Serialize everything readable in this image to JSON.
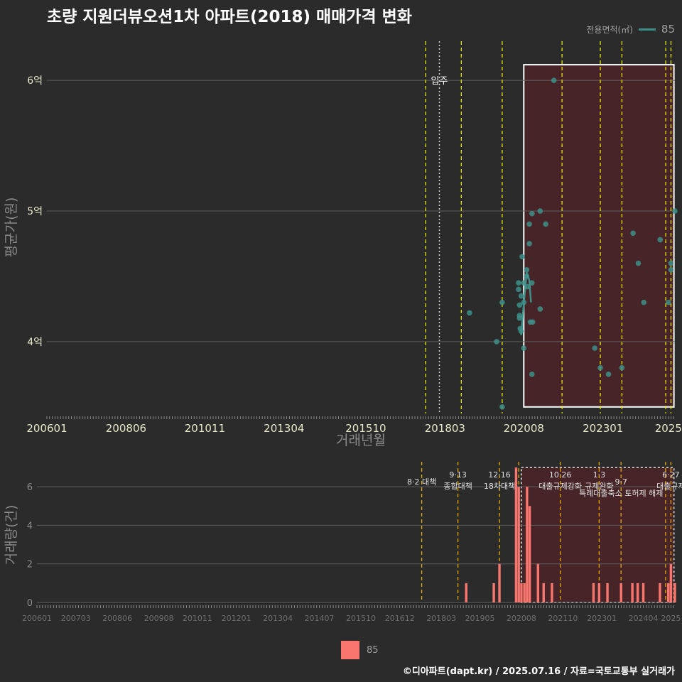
{
  "title": "초량 지원더뷰오션1차 아파트(2018) 매매가격 변화",
  "legend": {
    "label": "전용면적(㎡)",
    "series_name": "85"
  },
  "footer": "©디아파트(dapt.kr) / 2025.07.16 / 자료=국토교통부 실거래가",
  "colors": {
    "background": "#2b2b2b",
    "point": "#3d8f8a",
    "bar": "#f8766d",
    "highlight_fill": "#4a2327",
    "policy_line": "#e6e600",
    "policy_line_bottom": "#e6a800",
    "grid": "#5e5e5e"
  },
  "chart_data": [
    {
      "type": "scatter",
      "title": "초량 지원더뷰오션1차 아파트(2018) 매매가격 변화",
      "xlabel": "거래년월",
      "ylabel": "평균가(원)",
      "xlim": [
        2006.0,
        2025.2
      ],
      "ylim": [
        3.45,
        6.3
      ],
      "y_ticks": [
        {
          "v": 4,
          "label": "4억"
        },
        {
          "v": 5,
          "label": "5억"
        },
        {
          "v": 6,
          "label": "6억"
        }
      ],
      "x_ticks": [
        {
          "v": 2006.0,
          "label": "200601"
        },
        {
          "v": 2008.42,
          "label": "200806"
        },
        {
          "v": 2010.83,
          "label": "201011"
        },
        {
          "v": 2013.25,
          "label": "201304"
        },
        {
          "v": 2015.75,
          "label": "201510"
        },
        {
          "v": 2018.17,
          "label": "201803"
        },
        {
          "v": 2020.58,
          "label": "202008"
        },
        {
          "v": 2023.0,
          "label": "202301"
        },
        {
          "v": 2025.0,
          "label": "2025"
        }
      ],
      "annotation": {
        "label": "입주",
        "x": 2018.0,
        "y": 6.0
      },
      "policy_lines": [
        2017.58,
        2018.67,
        2019.92,
        2021.75,
        2022.92,
        2023.58,
        2024.92,
        2025.08
      ],
      "highlight": {
        "x0": 2020.58,
        "x1": 2025.17,
        "y0": 3.5,
        "y1": 6.12
      },
      "series": [
        {
          "name": "85",
          "points": [
            {
              "x": 2018.92,
              "y": 4.22
            },
            {
              "x": 2019.75,
              "y": 4.0
            },
            {
              "x": 2019.92,
              "y": 4.3
            },
            {
              "x": 2019.92,
              "y": 3.5
            },
            {
              "x": 2020.42,
              "y": 4.45
            },
            {
              "x": 2020.42,
              "y": 4.4
            },
            {
              "x": 2020.45,
              "y": 4.28
            },
            {
              "x": 2020.45,
              "y": 4.2
            },
            {
              "x": 2020.45,
              "y": 4.18
            },
            {
              "x": 2020.47,
              "y": 4.1
            },
            {
              "x": 2020.5,
              "y": 4.08
            },
            {
              "x": 2020.5,
              "y": 4.35
            },
            {
              "x": 2020.53,
              "y": 4.65
            },
            {
              "x": 2020.58,
              "y": 4.45
            },
            {
              "x": 2020.58,
              "y": 4.3
            },
            {
              "x": 2020.58,
              "y": 3.95
            },
            {
              "x": 2020.67,
              "y": 4.55
            },
            {
              "x": 2020.67,
              "y": 4.5
            },
            {
              "x": 2020.7,
              "y": 4.42
            },
            {
              "x": 2020.75,
              "y": 4.9
            },
            {
              "x": 2020.75,
              "y": 4.75
            },
            {
              "x": 2020.78,
              "y": 4.15
            },
            {
              "x": 2020.83,
              "y": 4.98
            },
            {
              "x": 2020.83,
              "y": 4.45
            },
            {
              "x": 2020.83,
              "y": 3.75
            },
            {
              "x": 2020.85,
              "y": 4.15
            },
            {
              "x": 2021.08,
              "y": 5.0
            },
            {
              "x": 2021.08,
              "y": 4.25
            },
            {
              "x": 2021.25,
              "y": 4.9
            },
            {
              "x": 2021.5,
              "y": 6.0
            },
            {
              "x": 2022.75,
              "y": 3.95
            },
            {
              "x": 2022.92,
              "y": 3.8
            },
            {
              "x": 2023.17,
              "y": 3.75
            },
            {
              "x": 2023.58,
              "y": 3.8
            },
            {
              "x": 2023.92,
              "y": 4.83
            },
            {
              "x": 2024.08,
              "y": 4.6
            },
            {
              "x": 2024.25,
              "y": 4.3
            },
            {
              "x": 2024.75,
              "y": 4.78
            },
            {
              "x": 2025.0,
              "y": 4.3
            },
            {
              "x": 2025.08,
              "y": 4.6
            },
            {
              "x": 2025.08,
              "y": 4.55
            },
            {
              "x": 2025.2,
              "y": 5.0
            }
          ],
          "trend": [
            {
              "x": 2020.5,
              "y": 4.05
            },
            {
              "x": 2020.55,
              "y": 4.2
            },
            {
              "x": 2020.62,
              "y": 4.4
            },
            {
              "x": 2020.67,
              "y": 4.53
            },
            {
              "x": 2020.75,
              "y": 4.47
            },
            {
              "x": 2020.8,
              "y": 4.3
            }
          ]
        }
      ]
    },
    {
      "type": "bar",
      "xlabel": "",
      "ylabel": "거래량(건)",
      "xlim": [
        2006.0,
        2025.2
      ],
      "ylim": [
        0,
        7
      ],
      "y_ticks": [
        {
          "v": 0,
          "label": "0"
        },
        {
          "v": 2,
          "label": "2"
        },
        {
          "v": 4,
          "label": "4"
        },
        {
          "v": 6,
          "label": "6"
        }
      ],
      "x_ticks": [
        {
          "v": 2006.0,
          "label": "200601"
        },
        {
          "v": 2007.17,
          "label": "200703"
        },
        {
          "v": 2008.42,
          "label": "200806"
        },
        {
          "v": 2009.67,
          "label": "200908"
        },
        {
          "v": 2010.83,
          "label": "201011"
        },
        {
          "v": 2012.0,
          "label": "201201"
        },
        {
          "v": 2013.25,
          "label": "201304"
        },
        {
          "v": 2014.5,
          "label": "201407"
        },
        {
          "v": 2015.75,
          "label": "201510"
        },
        {
          "v": 2016.92,
          "label": "201612"
        },
        {
          "v": 2018.17,
          "label": "201803"
        },
        {
          "v": 2019.33,
          "label": "201905"
        },
        {
          "v": 2020.58,
          "label": "202008"
        },
        {
          "v": 2021.83,
          "label": "202110"
        },
        {
          "v": 2023.0,
          "label": "202301"
        },
        {
          "v": 2024.25,
          "label": "202404"
        },
        {
          "v": 2025.08,
          "label": "2025"
        }
      ],
      "policy_lines": [
        2017.58,
        2018.67,
        2019.92,
        2020.5,
        2021.75,
        2022.92,
        2023.58,
        2024.92,
        2025.08
      ],
      "highlight": {
        "x0": 2020.58,
        "x1": 2025.17,
        "y0": 0,
        "y1": 7
      },
      "policy_labels": [
        {
          "x": 2017.58,
          "lines": [
            "8·2 대책"
          ],
          "row": 1
        },
        {
          "x": 2018.67,
          "lines": [
            "9·13",
            "종합대책"
          ],
          "row": 0
        },
        {
          "x": 2019.92,
          "lines": [
            "12·16",
            "18차대책"
          ],
          "row": 0
        },
        {
          "x": 2021.75,
          "lines": [
            "10·26",
            "대출규제강화"
          ],
          "row": 0
        },
        {
          "x": 2022.92,
          "lines": [
            "1·3",
            "규제완화"
          ],
          "row": 0
        },
        {
          "x": 2023.58,
          "lines": [
            "9·7",
            "특례대출축소 토허제 해제"
          ],
          "row": 1
        },
        {
          "x": 2025.08,
          "lines": [
            "6·27",
            "대출규제"
          ],
          "row": 0
        }
      ],
      "series": [
        {
          "name": "85",
          "bars": [
            {
              "x": 2018.92,
              "v": 1
            },
            {
              "x": 2019.75,
              "v": 1
            },
            {
              "x": 2019.92,
              "v": 2
            },
            {
              "x": 2020.42,
              "v": 7
            },
            {
              "x": 2020.5,
              "v": 6
            },
            {
              "x": 2020.58,
              "v": 1
            },
            {
              "x": 2020.67,
              "v": 1
            },
            {
              "x": 2020.75,
              "v": 6
            },
            {
              "x": 2020.83,
              "v": 5
            },
            {
              "x": 2021.08,
              "v": 2
            },
            {
              "x": 2021.25,
              "v": 1
            },
            {
              "x": 2021.5,
              "v": 1
            },
            {
              "x": 2022.75,
              "v": 1
            },
            {
              "x": 2022.92,
              "v": 1
            },
            {
              "x": 2023.17,
              "v": 1
            },
            {
              "x": 2023.58,
              "v": 1
            },
            {
              "x": 2023.92,
              "v": 1
            },
            {
              "x": 2024.08,
              "v": 1
            },
            {
              "x": 2024.25,
              "v": 1
            },
            {
              "x": 2024.75,
              "v": 1
            },
            {
              "x": 2025.0,
              "v": 1
            },
            {
              "x": 2025.08,
              "v": 2
            },
            {
              "x": 2025.2,
              "v": 1
            }
          ]
        }
      ]
    }
  ]
}
